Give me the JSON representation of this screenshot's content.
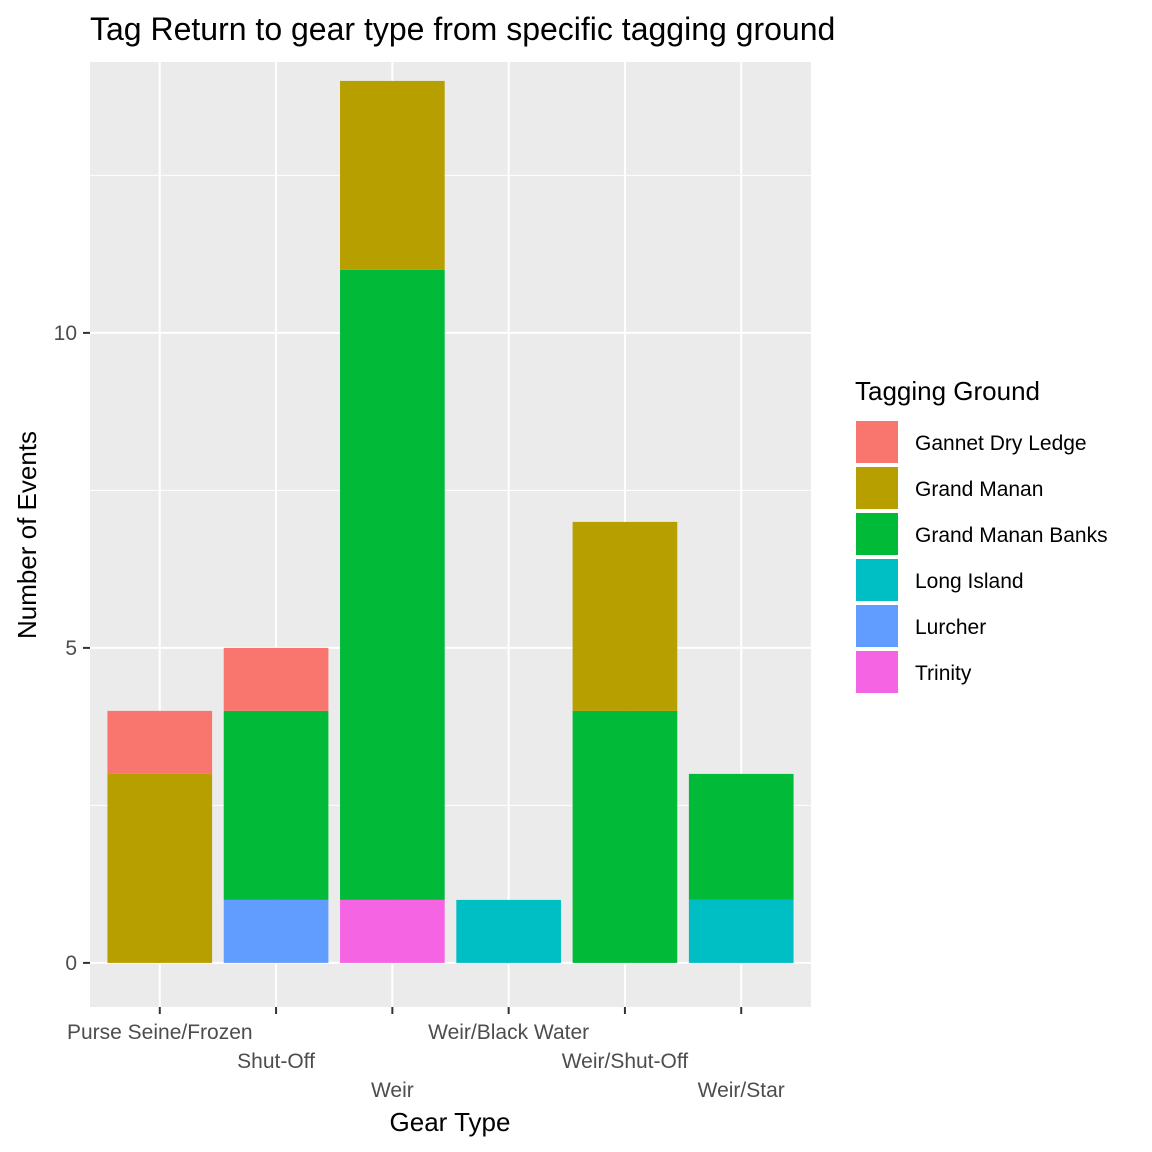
{
  "chart_data": {
    "type": "bar",
    "stacked": true,
    "title": "Tag Return to gear type from specific tagging ground",
    "xlabel": "Gear Type",
    "ylabel": "Number of Events",
    "ylim": [
      -0.7,
      14.3
    ],
    "yticks": [
      0,
      5,
      10
    ],
    "grid": true,
    "legend_title": "Tagging Ground",
    "legend_position": "right",
    "categories": [
      "Purse Seine/Frozen",
      "Shut-Off",
      "Weir",
      "Weir/Black Water",
      "Weir/Shut-Off",
      "Weir/Star"
    ],
    "series": [
      {
        "name": "Gannet Dry Ledge",
        "color": "#F8766D",
        "values": [
          1,
          1,
          0,
          0,
          0,
          0
        ]
      },
      {
        "name": "Grand Manan",
        "color": "#B79F00",
        "values": [
          3,
          0,
          3,
          0,
          3,
          0
        ]
      },
      {
        "name": "Grand Manan Banks",
        "color": "#00BA38",
        "values": [
          0,
          3,
          10,
          0,
          4,
          2
        ]
      },
      {
        "name": "Long Island",
        "color": "#00BFC4",
        "values": [
          0,
          0,
          0,
          1,
          0,
          1
        ]
      },
      {
        "name": "Lurcher",
        "color": "#619CFF",
        "values": [
          0,
          1,
          0,
          0,
          0,
          0
        ]
      },
      {
        "name": "Trinity",
        "color": "#F564E3",
        "values": [
          0,
          0,
          1,
          0,
          0,
          0
        ]
      }
    ]
  }
}
